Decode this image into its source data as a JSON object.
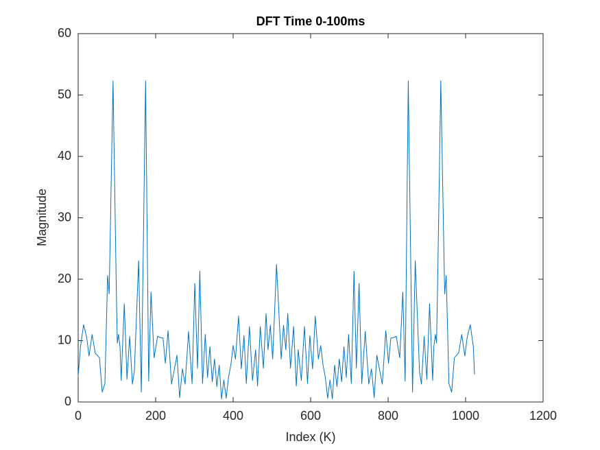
{
  "chart_data": {
    "type": "line",
    "title": "DFT Time 0-100ms",
    "x_label": "Index (K)",
    "y_label": "Magnitude",
    "x": [
      0,
      6,
      14,
      22,
      28,
      36,
      44,
      55,
      62,
      69,
      76,
      80,
      90,
      98,
      101,
      104,
      108,
      111,
      119,
      126,
      133,
      140,
      145,
      156,
      163,
      174,
      182,
      188,
      196,
      205,
      212,
      219,
      225,
      232,
      241,
      255,
      262,
      269,
      276,
      285,
      294,
      301,
      308,
      314,
      321,
      328,
      334,
      340,
      346,
      352,
      358,
      364,
      370,
      376,
      382,
      388,
      394,
      400,
      406,
      414,
      421,
      428,
      434,
      442,
      450,
      458,
      463,
      470,
      478,
      485,
      490,
      496,
      502,
      512,
      524,
      530,
      536,
      541,
      548,
      556,
      563,
      568,
      576,
      584,
      592,
      598,
      605,
      612,
      620,
      626,
      632,
      638,
      644,
      650,
      656,
      662,
      668,
      674,
      680,
      686,
      692,
      698,
      705,
      712,
      718,
      725,
      732,
      741,
      750,
      757,
      764,
      771,
      785,
      794,
      801,
      807,
      814,
      821,
      830,
      838,
      844,
      852,
      863,
      870,
      881,
      886,
      893,
      900,
      907,
      915,
      918,
      922,
      925,
      928,
      936,
      946,
      950,
      957,
      964,
      971,
      982,
      990,
      998,
      1004,
      1012,
      1020,
      1023
    ],
    "series": [
      {
        "color": "#0072bd",
        "values": [
          4.2,
          9,
          12.6,
          10.5,
          7.5,
          11,
          8,
          7.2,
          1.6,
          3,
          20.6,
          17.6,
          52.3,
          20,
          9.6,
          11,
          9,
          3.5,
          16,
          3.7,
          10.7,
          2.9,
          5,
          23,
          1.6,
          52.3,
          3.4,
          17.9,
          7.2,
          10.7,
          10.5,
          10.4,
          6.3,
          11.6,
          2.9,
          7.6,
          0.7,
          5.4,
          2.9,
          11.5,
          3,
          19.3,
          5.5,
          21.3,
          3,
          11,
          4,
          9,
          3.3,
          7,
          2.5,
          6,
          0.5,
          3.6,
          0.6,
          4,
          6,
          9.2,
          7,
          14,
          5.4,
          10.8,
          3,
          12.3,
          3.5,
          8.5,
          2.6,
          12.3,
          5.5,
          14.4,
          8.5,
          12.5,
          7,
          22.4,
          7,
          12.5,
          8.5,
          14.4,
          5.5,
          12.3,
          2.6,
          8.5,
          3.5,
          12.3,
          3,
          10.8,
          5.4,
          14,
          7,
          9.2,
          6,
          4,
          0.6,
          3.6,
          0.5,
          6,
          2.5,
          7,
          3.3,
          9,
          4,
          11,
          3,
          21.3,
          5.5,
          19.3,
          3,
          11.5,
          2.9,
          5.4,
          0.7,
          7.6,
          2.9,
          11.6,
          6.3,
          10.4,
          10.5,
          10.7,
          7.2,
          17.9,
          3.4,
          52.3,
          1.6,
          23,
          5,
          2.9,
          10.7,
          3.7,
          16,
          3.5,
          9,
          11,
          9.6,
          20,
          52.3,
          17.6,
          20.6,
          3,
          1.6,
          7.2,
          8,
          11,
          7.5,
          10.5,
          12.6,
          9,
          4.5
        ]
      }
    ],
    "xlim": [
      0,
      1200
    ],
    "xticks": [
      0,
      200,
      400,
      600,
      800,
      1000,
      1200
    ],
    "ylim": [
      0,
      60
    ],
    "yticks": [
      0,
      10,
      20,
      30,
      40,
      50,
      60
    ]
  }
}
